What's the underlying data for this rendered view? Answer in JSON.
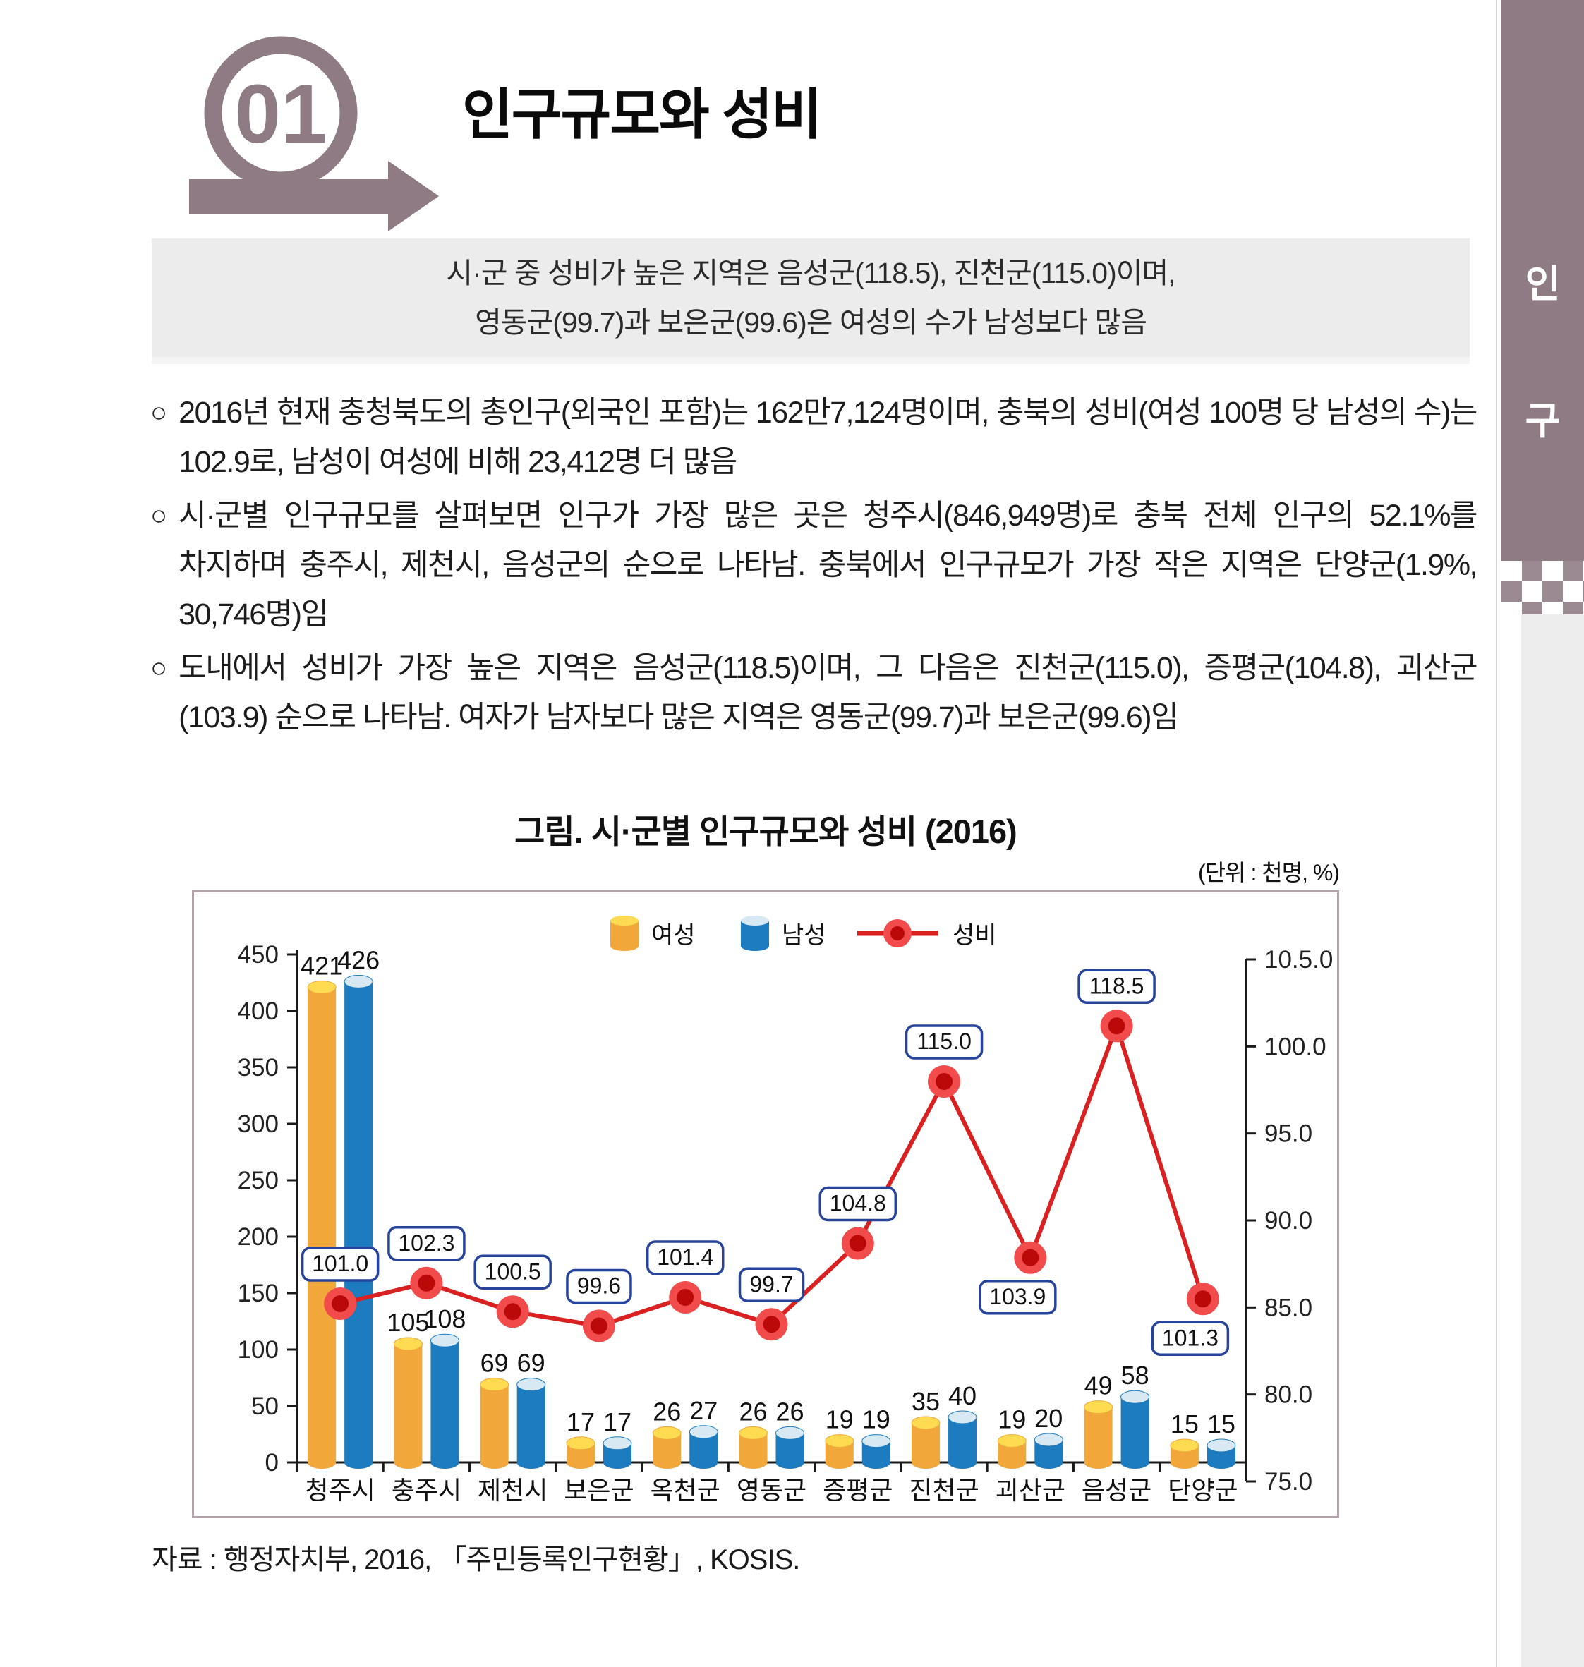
{
  "page": {
    "section_number": "01",
    "title": "인구규모와 성비",
    "summary": {
      "line1": "시·군 중 성비가 높은 지역은 음성군(118.5), 진천군(115.0)이며,",
      "line2": "영동군(99.7)과 보은군(99.6)은 여성의 수가 남성보다 많음"
    },
    "bullets": [
      "2016년 현재 충청북도의 총인구(외국인 포함)는 162만7,124명이며, 충북의 성비(여성 100명 당 남성의 수)는 102.9로, 남성이 여성에 비해 23,412명 더 많음",
      "시·군별 인구규모를 살펴보면 인구가 가장 많은 곳은 청주시(846,949명)로 충북 전체 인구의 52.1%를 차지하며 충주시, 제천시, 음성군의 순으로 나타남. 충북에서 인구규모가 가장 작은 지역은 단양군(1.9%, 30,746명)임",
      "도내에서 성비가 가장 높은 지역은 음성군(118.5)이며, 그 다음은 진천군(115.0), 증평군(104.8), 괴산군(103.9) 순으로 나타남. 여자가 남자보다 많은 지역은 영동군(99.7)과 보은군(99.6)임"
    ],
    "sidebar": {
      "chars": [
        "인",
        "구"
      ]
    },
    "source": "자료 : 행정자치부, 2016, 「주민등록인구현황」, KOSIS."
  },
  "figure": {
    "title": "그림. 시·군별 인구규모와 성비 (2016)",
    "unit_note": "(단위 : 천명, %)"
  },
  "chart_data": {
    "type": "bar",
    "subtype": "cylinder-bars-with-line-overlay",
    "title": "그림. 시·군별 인구규모와 성비 (2016)",
    "categories": [
      "청주시",
      "충주시",
      "제천시",
      "보은군",
      "옥천군",
      "영동군",
      "증평군",
      "진천군",
      "괴산군",
      "음성군",
      "단양군"
    ],
    "series": [
      {
        "name": "여성",
        "type": "bar",
        "values": [
          421,
          105,
          69,
          17,
          26,
          26,
          19,
          35,
          19,
          49,
          15
        ]
      },
      {
        "name": "남성",
        "type": "bar",
        "values": [
          426,
          108,
          69,
          17,
          27,
          26,
          19,
          40,
          20,
          58,
          15
        ]
      },
      {
        "name": "성비",
        "type": "line",
        "values": [
          101.0,
          102.3,
          100.5,
          99.6,
          101.4,
          99.7,
          104.8,
          115.0,
          103.9,
          118.5,
          101.3
        ]
      }
    ],
    "ratio_label_positions": [
      "above",
      "above",
      "above",
      "above",
      "above",
      "above",
      "above",
      "above",
      "below",
      "above",
      "below"
    ],
    "left_axis": {
      "ticks": [
        0,
        50,
        100,
        150,
        200,
        250,
        300,
        350,
        400,
        450
      ],
      "min": 0,
      "max": 450
    },
    "right_axis": {
      "tick_labels_top_to_bottom": [
        "10.5.0",
        "100.0",
        "95.0",
        "90.0",
        "85.0",
        "80.0",
        "75.0"
      ]
    },
    "legend": [
      "여성",
      "남성",
      "성비"
    ],
    "legend_position": "top-center",
    "grid": false,
    "colors": {
      "female_body": "#f2a73a",
      "female_top": "#ffdb52",
      "male_body": "#1c7cbf",
      "male_top": "#d8e9f3",
      "line": "#d92121",
      "marker_outer": "#f14b4b",
      "marker_inner": "#bb0909",
      "label_box_border": "#27439b",
      "axis": "#1a1a1a",
      "badge": "#8e7b84",
      "sidebar_band": "#8e7b84",
      "summary_bg": "#ececec"
    }
  }
}
